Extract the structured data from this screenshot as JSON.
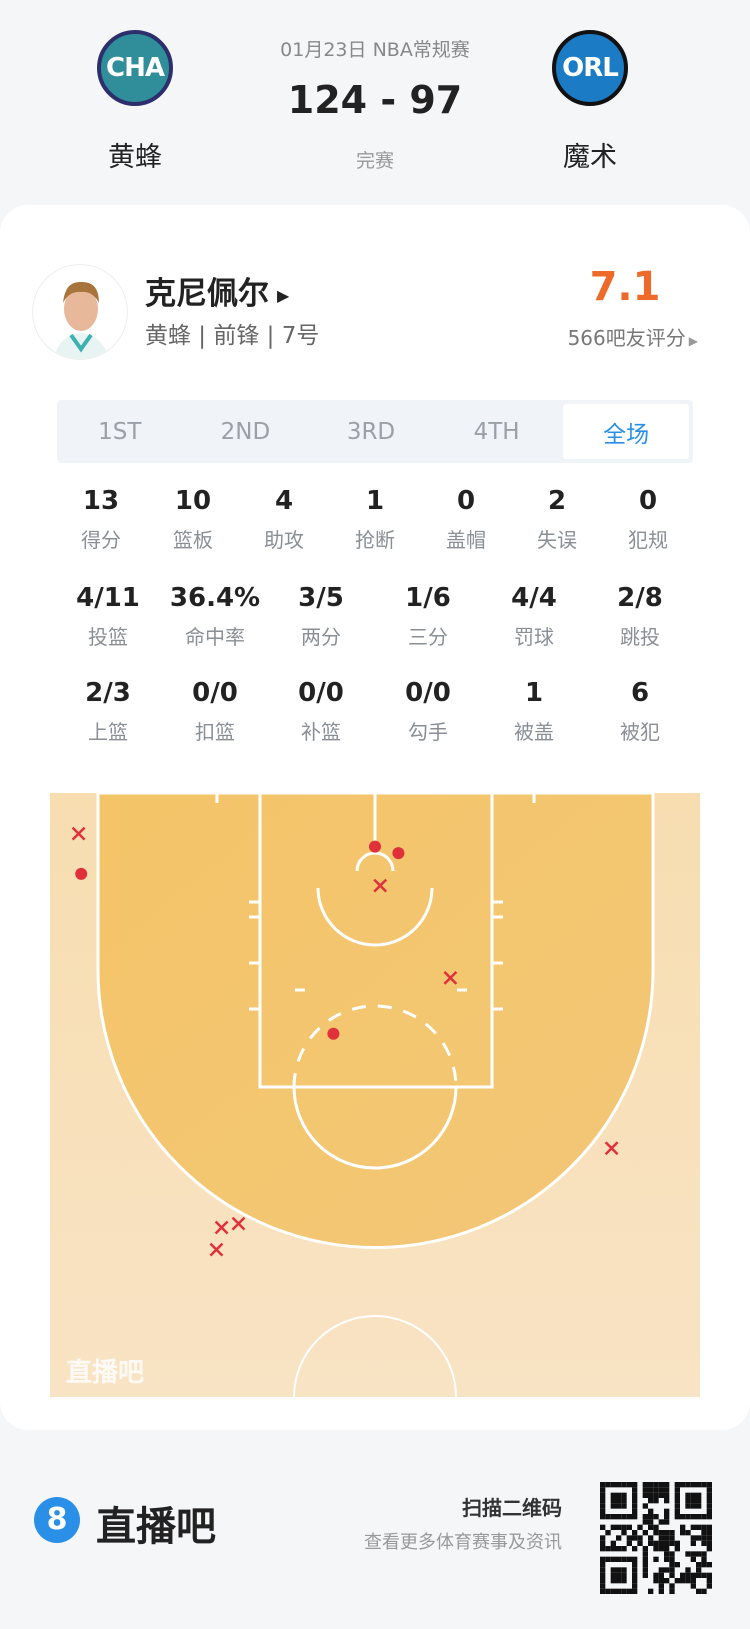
{
  "header": {
    "date_league": "01月23日 NBA常规赛",
    "score": "124 - 97",
    "status": "完赛",
    "home": {
      "abbr": "CHA",
      "name": "黄蜂",
      "color": "#1d6f86"
    },
    "away": {
      "abbr": "ORL",
      "name": "魔术",
      "color": "#1b7bc4"
    }
  },
  "player": {
    "name": "克尼佩尔",
    "info": "黄蜂 | 前锋 | 7号",
    "rating": "7.1",
    "rating_label": "566吧友评分",
    "rating_color": "#ee6a2a"
  },
  "tabs": [
    "1ST",
    "2ND",
    "3RD",
    "4TH",
    "全场"
  ],
  "active_tab": "全场",
  "stats_row1": [
    {
      "v": "13",
      "l": "得分"
    },
    {
      "v": "10",
      "l": "篮板"
    },
    {
      "v": "4",
      "l": "助攻"
    },
    {
      "v": "1",
      "l": "抢断"
    },
    {
      "v": "0",
      "l": "盖帽"
    },
    {
      "v": "2",
      "l": "失误"
    },
    {
      "v": "0",
      "l": "犯规"
    }
  ],
  "stats_row2": [
    {
      "v": "4/11",
      "l": "投篮"
    },
    {
      "v": "36.4%",
      "l": "命中率"
    },
    {
      "v": "3/5",
      "l": "两分"
    },
    {
      "v": "1/6",
      "l": "三分"
    },
    {
      "v": "4/4",
      "l": "罚球"
    },
    {
      "v": "2/8",
      "l": "跳投"
    }
  ],
  "stats_row3": [
    {
      "v": "2/3",
      "l": "上篮"
    },
    {
      "v": "0/0",
      "l": "扣篮"
    },
    {
      "v": "0/0",
      "l": "补篮"
    },
    {
      "v": "0/0",
      "l": "勾手"
    },
    {
      "v": "1",
      "l": "被盖"
    },
    {
      "v": "6",
      "l": "被犯"
    }
  ],
  "chart_data": {
    "type": "scatter",
    "description_units": "feet from basket",
    "shots": [
      {
        "x": -22.8,
        "y": -2.8,
        "made": false
      },
      {
        "x": -22.6,
        "y": 0.3,
        "made": true
      },
      {
        "x": 0,
        "y": -1.8,
        "made": true
      },
      {
        "x": 1.8,
        "y": -1.3,
        "made": true
      },
      {
        "x": 0.4,
        "y": 1.2,
        "made": false
      },
      {
        "x": 5.8,
        "y": 8.3,
        "made": false
      },
      {
        "x": -3.2,
        "y": 12.6,
        "made": true
      },
      {
        "x": 18.2,
        "y": 21.4,
        "made": false
      },
      {
        "x": -11.8,
        "y": 27.5,
        "made": false
      },
      {
        "x": -10.5,
        "y": 27.2,
        "made": false
      },
      {
        "x": -12.2,
        "y": 29.2,
        "made": false
      }
    ],
    "made_color": "#e0313b",
    "watermark": "直播吧"
  },
  "footer": {
    "brand": "直播吧",
    "brand_badge": "8",
    "brand_color": "#2a8fe6",
    "scan_title": "扫描二维码",
    "scan_sub": "查看更多体育赛事及资讯"
  }
}
